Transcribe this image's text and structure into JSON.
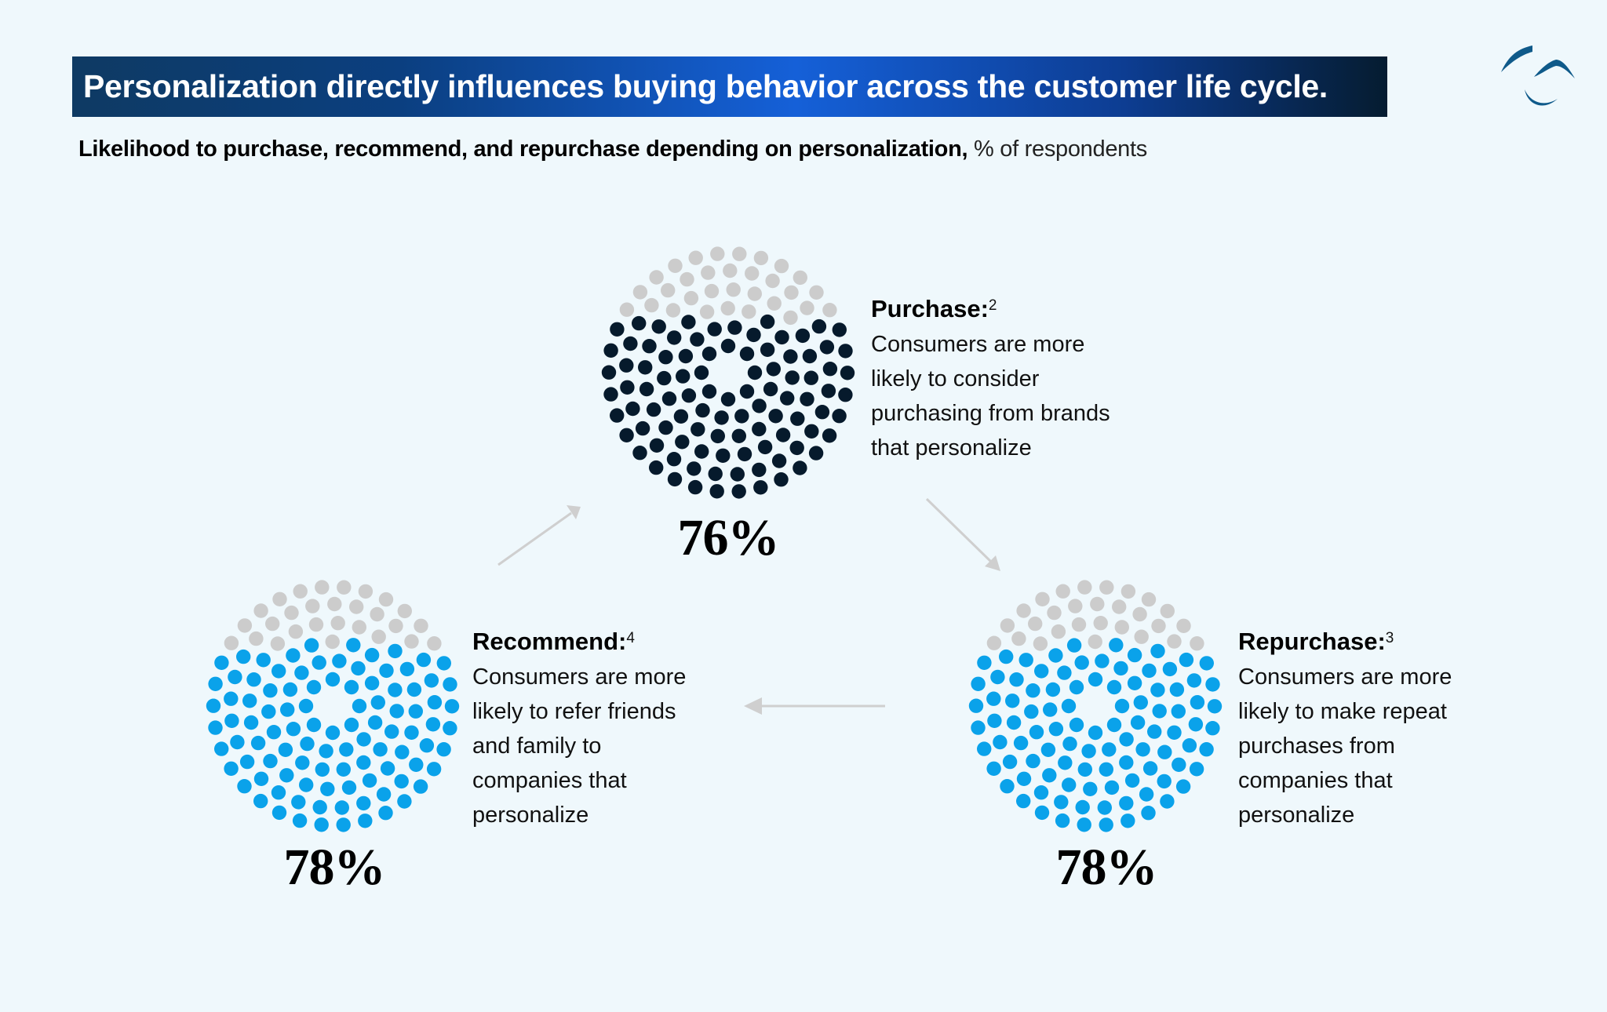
{
  "header": {
    "title": "Personalization directly influences buying behavior across the customer life cycle.",
    "subtitle_bold": "Likelihood to purchase, recommend, and repurchase depending on personalization,",
    "subtitle_light": "% of respondents",
    "logo_icon": "brand-logo-arcs-icon"
  },
  "colors": {
    "background": "#eff8fc",
    "title_bar_gradient": [
      "#0e3a63",
      "#1560d8",
      "#051c30"
    ],
    "purchase_dot": "#061a2c",
    "recommend_dot": "#0aa2ea",
    "repurchase_dot": "#0aa2ea",
    "remainder_dot": "#cccccc",
    "arrow": "#cfcfcf",
    "logo": "#0f5a8a"
  },
  "stages": [
    {
      "key": "purchase",
      "title": "Purchase:",
      "footnote": "2",
      "description_lines": [
        "Consumers are more",
        "likely to consider",
        "purchasing from brands",
        "that personalize"
      ],
      "value_label": "76%",
      "value": 76
    },
    {
      "key": "repurchase",
      "title": "Repurchase:",
      "footnote": "3",
      "description_lines": [
        "Consumers are more",
        "likely to make repeat",
        "purchases from",
        "companies that",
        "personalize"
      ],
      "value_label": "78%",
      "value": 78
    },
    {
      "key": "recommend",
      "title": "Recommend:",
      "footnote": "4",
      "description_lines": [
        "Consumers are more",
        "likely to refer friends",
        "and family to",
        "companies that",
        "personalize"
      ],
      "value_label": "78%",
      "value": 78
    }
  ],
  "flow": {
    "arrows": [
      "recommend-to-purchase",
      "purchase-to-repurchase",
      "repurchase-to-recommend"
    ]
  },
  "chart_data": {
    "type": "pie",
    "title": "Personalization directly influences buying behavior across the customer life cycle.",
    "subtitle": "Likelihood to purchase, recommend, and repurchase depending on personalization, % of respondents",
    "categories": [
      "Purchase",
      "Repurchase",
      "Recommend"
    ],
    "values": [
      76,
      78,
      78
    ],
    "remainder": [
      24,
      22,
      22
    ],
    "unit": "% of respondents",
    "footnotes": [
      "2",
      "3",
      "4"
    ],
    "style": "dot-matrix circles, colored share vs gray remainder, connected by cycle arrows"
  }
}
